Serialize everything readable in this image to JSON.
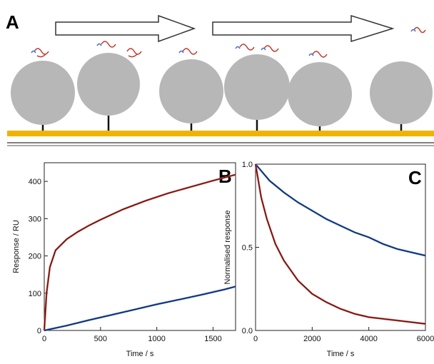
{
  "panel_a": {
    "label": "A"
  },
  "chart_data": [
    {
      "type": "line",
      "label": "B",
      "x_label": "Time / s",
      "y_label": "Response / RU",
      "xlim": [
        0,
        1700
      ],
      "xticks": [
        0,
        500,
        1000,
        1500
      ],
      "ylim": [
        0,
        450
      ],
      "yticks": [
        0,
        100,
        200,
        300,
        400
      ],
      "series": [
        {
          "color": "#d03a30",
          "x": [
            0,
            20,
            50,
            100,
            200,
            300,
            400,
            500,
            700,
            900,
            1100,
            1300,
            1500,
            1700
          ],
          "values": [
            0,
            100,
            170,
            215,
            245,
            265,
            282,
            297,
            325,
            348,
            368,
            385,
            402,
            418
          ]
        },
        {
          "color": "#2a63c8",
          "x": [
            0,
            200,
            400,
            600,
            800,
            1000,
            1200,
            1400,
            1600,
            1700
          ],
          "values": [
            0,
            13,
            28,
            42,
            56,
            70,
            83,
            96,
            110,
            118
          ]
        }
      ]
    },
    {
      "type": "line",
      "label": "C",
      "x_label": "Time / s",
      "y_label": "Normalised response",
      "xlim": [
        0,
        6000
      ],
      "xticks": [
        0,
        2000,
        4000,
        6000
      ],
      "ylim": [
        0,
        1
      ],
      "yticks": [
        {
          "value": 0,
          "label": "0.0"
        },
        0.5,
        {
          "value": 1,
          "label": "1.0"
        }
      ],
      "series": [
        {
          "color": "#2a63c8",
          "x": [
            0,
            500,
            1000,
            1500,
            2000,
            2500,
            3000,
            3500,
            4000,
            4500,
            5000,
            5500,
            6000
          ],
          "values": [
            1,
            0.9,
            0.83,
            0.77,
            0.72,
            0.67,
            0.63,
            0.59,
            0.56,
            0.52,
            0.49,
            0.47,
            0.45
          ]
        },
        {
          "color": "#d03a30",
          "x": [
            0,
            200,
            400,
            700,
            1000,
            1500,
            2000,
            2500,
            3000,
            3500,
            4000,
            5000,
            6000
          ],
          "values": [
            1,
            0.8,
            0.67,
            0.52,
            0.42,
            0.3,
            0.22,
            0.17,
            0.13,
            0.1,
            0.08,
            0.06,
            0.04
          ]
        }
      ]
    }
  ]
}
